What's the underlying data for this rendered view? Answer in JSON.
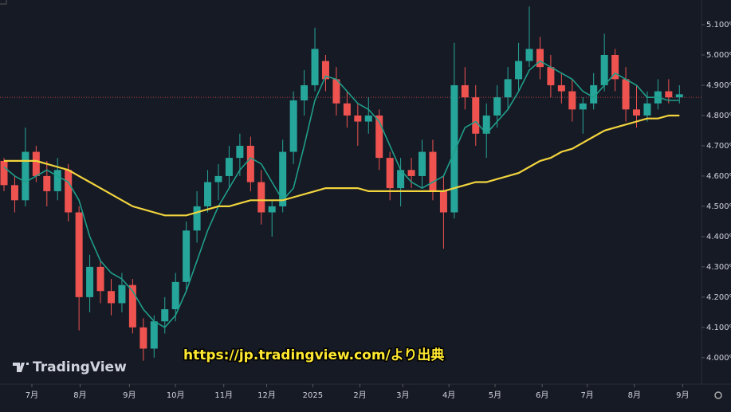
{
  "chart_data": {
    "type": "candlestick",
    "open": [
      4.65,
      4.57,
      4.52,
      4.68,
      4.6,
      4.55,
      4.62,
      4.48,
      4.2,
      4.3,
      4.22,
      4.18,
      4.24,
      4.1,
      4.03,
      4.12,
      4.16,
      4.25,
      4.42,
      4.5,
      4.58,
      4.6,
      4.66,
      4.7,
      4.58,
      4.48,
      4.5,
      4.68,
      4.85,
      4.9,
      4.98,
      4.92,
      4.84,
      4.8,
      4.78,
      4.8,
      4.66,
      4.56,
      4.62,
      4.6,
      4.68,
      4.55,
      4.48,
      4.9,
      4.86,
      4.74,
      4.8,
      4.86,
      4.92,
      4.98,
      5.02,
      4.96,
      4.9,
      4.88,
      4.82,
      4.84,
      4.9,
      5.0,
      4.92,
      4.82,
      4.8,
      4.84,
      4.88,
      4.86
    ],
    "high": [
      4.66,
      4.6,
      4.76,
      4.7,
      4.65,
      4.66,
      4.64,
      4.5,
      4.34,
      4.32,
      4.26,
      4.28,
      4.26,
      4.13,
      4.14,
      4.2,
      4.28,
      4.45,
      4.55,
      4.62,
      4.64,
      4.7,
      4.74,
      4.73,
      4.62,
      4.52,
      4.72,
      4.88,
      4.95,
      5.09,
      5.0,
      4.96,
      4.88,
      4.84,
      4.86,
      4.82,
      4.68,
      4.66,
      4.66,
      4.72,
      4.72,
      4.6,
      5.04,
      4.96,
      4.9,
      4.84,
      4.9,
      4.96,
      5.04,
      5.16,
      5.06,
      5.0,
      4.94,
      4.92,
      4.86,
      4.94,
      5.07,
      5.02,
      4.96,
      4.9,
      4.88,
      4.92,
      4.92,
      4.9
    ],
    "low": [
      4.55,
      4.48,
      4.5,
      4.58,
      4.5,
      4.52,
      4.45,
      4.09,
      4.15,
      4.18,
      4.14,
      4.15,
      4.08,
      3.99,
      4.0,
      4.08,
      4.12,
      4.22,
      4.38,
      4.48,
      4.52,
      4.56,
      4.6,
      4.55,
      4.44,
      4.4,
      4.48,
      4.64,
      4.8,
      4.88,
      4.88,
      4.8,
      4.76,
      4.7,
      4.74,
      4.62,
      4.52,
      4.5,
      4.56,
      4.56,
      4.52,
      4.36,
      4.46,
      4.82,
      4.7,
      4.66,
      4.76,
      4.82,
      4.88,
      4.96,
      4.92,
      4.86,
      4.84,
      4.78,
      4.74,
      4.82,
      4.88,
      4.88,
      4.78,
      4.76,
      4.78,
      4.82,
      4.84,
      4.84
    ],
    "close": [
      4.57,
      4.52,
      4.68,
      4.6,
      4.55,
      4.62,
      4.48,
      4.2,
      4.3,
      4.22,
      4.18,
      4.24,
      4.1,
      4.03,
      4.12,
      4.16,
      4.25,
      4.42,
      4.5,
      4.58,
      4.6,
      4.66,
      4.7,
      4.58,
      4.48,
      4.5,
      4.68,
      4.85,
      4.9,
      5.02,
      4.92,
      4.84,
      4.8,
      4.78,
      4.8,
      4.66,
      4.56,
      4.62,
      4.6,
      4.68,
      4.55,
      4.48,
      4.9,
      4.86,
      4.74,
      4.8,
      4.86,
      4.92,
      4.98,
      5.02,
      4.96,
      4.9,
      4.88,
      4.82,
      4.84,
      4.9,
      5.0,
      4.92,
      4.82,
      4.8,
      4.84,
      4.88,
      4.86,
      4.87
    ],
    "up_color": "#26a69a",
    "down_color": "#ef5350",
    "overlays": [
      {
        "color": "#1f9e8a",
        "values": [
          4.63,
          4.6,
          4.58,
          4.6,
          4.62,
          4.6,
          4.58,
          4.52,
          4.4,
          4.32,
          4.28,
          4.26,
          4.22,
          4.16,
          4.12,
          4.1,
          4.14,
          4.22,
          4.32,
          4.42,
          4.5,
          4.56,
          4.62,
          4.66,
          4.64,
          4.58,
          4.52,
          4.56,
          4.7,
          4.85,
          4.93,
          4.92,
          4.88,
          4.84,
          4.82,
          4.78,
          4.7,
          4.62,
          4.58,
          4.56,
          4.58,
          4.6,
          4.68,
          4.76,
          4.78,
          4.74,
          4.78,
          4.82,
          4.88,
          4.95,
          4.98,
          4.96,
          4.94,
          4.92,
          4.88,
          4.86,
          4.9,
          4.94,
          4.92,
          4.9,
          4.86,
          4.86,
          4.85,
          4.85
        ]
      },
      {
        "color": "#f2d43d",
        "values": [
          4.65,
          4.65,
          4.65,
          4.65,
          4.64,
          4.63,
          4.62,
          4.6,
          4.58,
          4.56,
          4.54,
          4.52,
          4.5,
          4.49,
          4.48,
          4.47,
          4.47,
          4.47,
          4.48,
          4.49,
          4.5,
          4.5,
          4.51,
          4.52,
          4.52,
          4.52,
          4.52,
          4.53,
          4.54,
          4.55,
          4.56,
          4.56,
          4.56,
          4.56,
          4.55,
          4.55,
          4.55,
          4.55,
          4.55,
          4.55,
          4.55,
          4.55,
          4.56,
          4.57,
          4.58,
          4.58,
          4.59,
          4.6,
          4.61,
          4.63,
          4.65,
          4.66,
          4.68,
          4.69,
          4.71,
          4.73,
          4.75,
          4.76,
          4.77,
          4.78,
          4.79,
          4.79,
          4.8,
          4.8
        ]
      }
    ],
    "price_line": 4.86,
    "ylim": [
      3.9469,
      5.1816
    ],
    "yticks": [
      {
        "value": 5.1,
        "label": "5.100%"
      },
      {
        "value": 5.0,
        "label": "5.000%"
      },
      {
        "value": 4.9,
        "label": "4.900%"
      },
      {
        "value": 4.8,
        "label": "4.800%"
      },
      {
        "value": 4.7,
        "label": "4.700%"
      },
      {
        "value": 4.6,
        "label": "4.600%"
      },
      {
        "value": 4.5,
        "label": "4.500%"
      },
      {
        "value": 4.4,
        "label": "4.400%"
      },
      {
        "value": 4.3,
        "label": "4.300%"
      },
      {
        "value": 4.2,
        "label": "4.200%"
      },
      {
        "value": 4.1,
        "label": "4.100%"
      },
      {
        "value": 4.0,
        "label": "4.000%"
      }
    ],
    "xlim": [
      -0.372,
      65.06
    ],
    "xticks": [
      {
        "value": 2.6,
        "label": "7月"
      },
      {
        "value": 7.1,
        "label": "8月"
      },
      {
        "value": 11.7,
        "label": "9月"
      },
      {
        "value": 16,
        "label": "10月"
      },
      {
        "value": 20.5,
        "label": "11月"
      },
      {
        "value": 24.5,
        "label": "12月"
      },
      {
        "value": 28.8,
        "label": "2025"
      },
      {
        "value": 33.2,
        "label": "2月"
      },
      {
        "value": 37.2,
        "label": "3月"
      },
      {
        "value": 41.5,
        "label": "4月"
      },
      {
        "value": 45.8,
        "label": "5月"
      },
      {
        "value": 50.2,
        "label": "6月"
      },
      {
        "value": 54.4,
        "label": "7月"
      },
      {
        "value": 58.8,
        "label": "8月"
      },
      {
        "value": 63.3,
        "label": "9月"
      }
    ],
    "watermark": "TradingView",
    "source_note": "https://jp.tradingview.com/より出典"
  }
}
